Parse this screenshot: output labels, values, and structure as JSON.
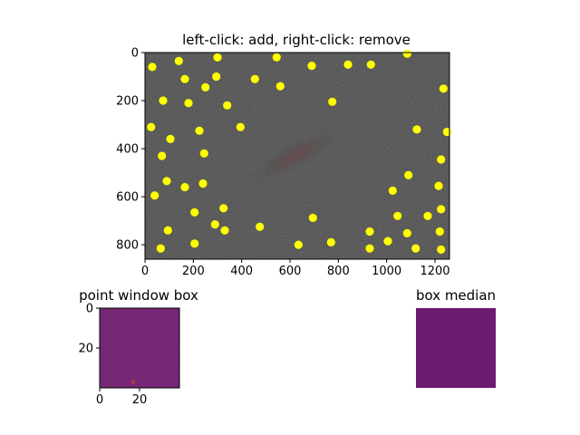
{
  "main_plot": {
    "title": "left-click: add, right-click: remove",
    "x_ticks": [
      "0",
      "200",
      "400",
      "600",
      "800",
      "1000",
      "1200"
    ],
    "y_ticks": [
      "0",
      "200",
      "400",
      "600",
      "800"
    ],
    "xlim": [
      0,
      1260
    ],
    "ylim": [
      860,
      0
    ],
    "marker_color": "#ffff00",
    "image_tone": "#444444",
    "points": [
      [
        30,
        60
      ],
      [
        140,
        35
      ],
      [
        165,
        110
      ],
      [
        300,
        20
      ],
      [
        295,
        100
      ],
      [
        250,
        145
      ],
      [
        75,
        200
      ],
      [
        180,
        210
      ],
      [
        340,
        220
      ],
      [
        455,
        110
      ],
      [
        545,
        20
      ],
      [
        560,
        140
      ],
      [
        690,
        55
      ],
      [
        775,
        205
      ],
      [
        840,
        50
      ],
      [
        935,
        50
      ],
      [
        1085,
        5
      ],
      [
        1235,
        150
      ],
      [
        25,
        310
      ],
      [
        105,
        360
      ],
      [
        225,
        325
      ],
      [
        245,
        420
      ],
      [
        395,
        310
      ],
      [
        70,
        430
      ],
      [
        1125,
        320
      ],
      [
        1250,
        330
      ],
      [
        1225,
        445
      ],
      [
        1090,
        510
      ],
      [
        1215,
        555
      ],
      [
        1025,
        575
      ],
      [
        40,
        595
      ],
      [
        90,
        535
      ],
      [
        165,
        560
      ],
      [
        240,
        545
      ],
      [
        325,
        648
      ],
      [
        205,
        665
      ],
      [
        1045,
        680
      ],
      [
        1170,
        680
      ],
      [
        1225,
        652
      ],
      [
        695,
        688
      ],
      [
        95,
        740
      ],
      [
        290,
        715
      ],
      [
        330,
        740
      ],
      [
        475,
        725
      ],
      [
        930,
        745
      ],
      [
        1005,
        785
      ],
      [
        1085,
        752
      ],
      [
        1220,
        745
      ],
      [
        635,
        800
      ],
      [
        770,
        790
      ],
      [
        65,
        815
      ],
      [
        205,
        795
      ],
      [
        930,
        815
      ],
      [
        1120,
        815
      ],
      [
        1225,
        820
      ]
    ]
  },
  "window_box": {
    "title": "point window box",
    "x_ticks": [
      "0",
      "20"
    ],
    "y_ticks": [
      "0",
      "20"
    ],
    "xlim": [
      0,
      40
    ],
    "ylim": [
      40,
      0
    ],
    "fill_color": "#6a1b6b"
  },
  "median_box": {
    "title": "box median",
    "fill_color": "#6c1b6e"
  }
}
